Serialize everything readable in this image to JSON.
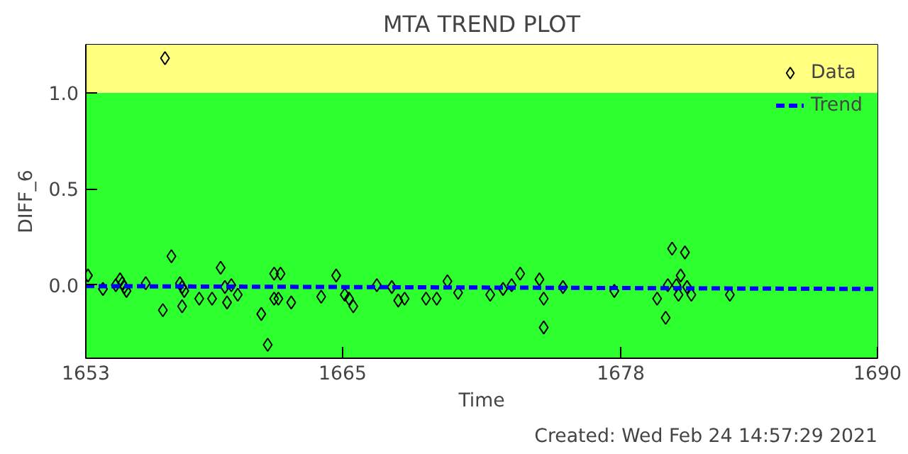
{
  "chart_data": {
    "type": "scatter",
    "title": "MTA TREND PLOT",
    "xlabel": "Time",
    "ylabel": "DIFF_6",
    "annotations": [
      "Created: Wed Feb 24 14:57:29 2021"
    ],
    "xlim": [
      1653,
      1690
    ],
    "xticks": [
      1653,
      1665,
      1678,
      1690
    ],
    "ylim": [
      -0.38,
      1.25
    ],
    "yticks": [
      {
        "value": 0,
        "label": "0.0"
      },
      0.5,
      {
        "value": 1,
        "label": "1.0"
      }
    ],
    "grid": false,
    "legend": "top right",
    "bands": [
      {
        "axis": "y",
        "from": -0.38,
        "to": 1.0,
        "color": "#2eff2e"
      },
      {
        "axis": "y",
        "from": 1.0,
        "to": 1.25,
        "color": "#ffff80"
      }
    ],
    "series": [
      {
        "name": "Data",
        "marker": "diamond",
        "color": "#000000",
        "x": [
          1653.1,
          1653.8,
          1654.4,
          1654.6,
          1654.7,
          1654.8,
          1654.9,
          1655.8,
          1656.6,
          1656.7,
          1657.0,
          1657.4,
          1657.5,
          1657.6,
          1657.5,
          1658.3,
          1658.9,
          1659.3,
          1659.5,
          1659.6,
          1659.8,
          1660.1,
          1661.2,
          1661.5,
          1661.8,
          1662.1,
          1661.8,
          1662.0,
          1662.6,
          1664.0,
          1664.7,
          1665.1,
          1665.3,
          1665.5,
          1666.6,
          1667.3,
          1667.6,
          1667.9,
          1668.9,
          1669.4,
          1669.9,
          1670.4,
          1671.9,
          1672.5,
          1672.9,
          1673.3,
          1674.2,
          1674.4,
          1674.4,
          1675.3,
          1677.7,
          1680.4,
          1681.0,
          1680.8,
          1680.2,
          1680.6,
          1681.1,
          1679.7,
          1680.7,
          1681.3,
          1680.1,
          1683.1
        ],
        "values": [
          0.05,
          -0.02,
          0.0,
          0.03,
          0.01,
          -0.01,
          -0.03,
          0.01,
          -0.13,
          1.18,
          0.15,
          0.01,
          -0.01,
          -0.03,
          -0.11,
          -0.07,
          -0.07,
          0.09,
          -0.01,
          -0.09,
          0.0,
          -0.05,
          -0.15,
          -0.31,
          0.06,
          0.06,
          -0.07,
          -0.07,
          -0.09,
          -0.06,
          0.05,
          -0.05,
          -0.07,
          -0.11,
          0.0,
          -0.01,
          -0.08,
          -0.07,
          -0.07,
          -0.07,
          0.02,
          -0.04,
          -0.05,
          -0.02,
          0.0,
          0.06,
          0.03,
          -0.07,
          -0.22,
          -0.01,
          -0.03,
          0.19,
          0.17,
          0.05,
          0.0,
          0.0,
          -0.01,
          -0.07,
          -0.05,
          -0.05,
          -0.17,
          -0.05
        ]
      },
      {
        "name": "Trend",
        "type": "line",
        "line_style": "dashed",
        "color": "#0000ff",
        "x": [
          1653,
          1690
        ],
        "values": [
          -0.005,
          -0.02
        ]
      }
    ]
  }
}
